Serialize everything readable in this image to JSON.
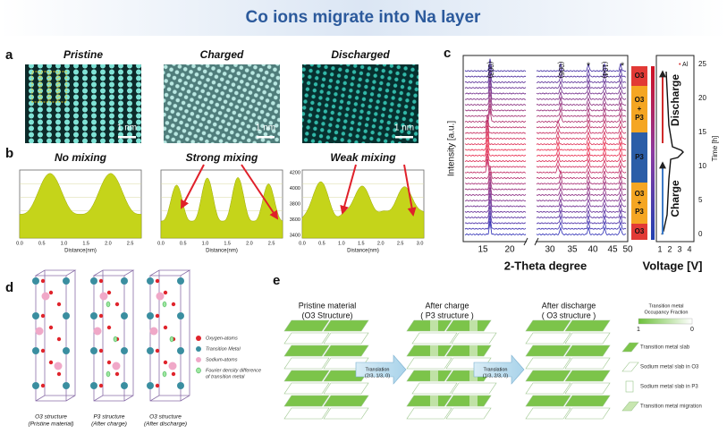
{
  "title": "Co ions migrate into Na layer",
  "panel_a": {
    "letter": "a",
    "images": [
      {
        "label": "Pristine",
        "scale": "1 nm"
      },
      {
        "label": "Charged",
        "scale": "1 nm"
      },
      {
        "label": "Discharged",
        "scale": "1 nm"
      }
    ]
  },
  "panel_b": {
    "letter": "b",
    "plots": [
      {
        "label": "No mixing",
        "xlabel": "Distance(nm)",
        "xticks": [
          "0.0",
          "0.5",
          "1.0",
          "1.5",
          "2.0",
          "2.5"
        ]
      },
      {
        "label": "Strong mixing",
        "xlabel": "Distance(nm)",
        "xticks": [
          "0.0",
          "0.5",
          "1.0",
          "1.5",
          "2.0",
          "2.5"
        ]
      },
      {
        "label": "Weak mixing",
        "xlabel": "Distance(nm)",
        "xticks": [
          "0.0",
          "0.5",
          "1.0",
          "1.5",
          "2.0",
          "2.5",
          "3.0"
        ],
        "yticks": [
          "4200",
          "4000",
          "3800",
          "3600",
          "3400"
        ]
      }
    ]
  },
  "panel_c": {
    "letter": "c",
    "ylabel": "Intensity [a.u.]",
    "xlabel": "2-Theta degree",
    "xticks": [
      "15",
      "20",
      "30",
      "35",
      "40",
      "45",
      "50"
    ],
    "peaks": [
      "(003)",
      "(006)",
      "(104)"
    ],
    "stars": [
      "*",
      "*"
    ],
    "phases": [
      [
        "O3"
      ],
      [
        "O3",
        "+",
        "P3"
      ],
      [
        "P3"
      ],
      [
        "O3",
        "+",
        "P3"
      ],
      [
        "O3"
      ]
    ],
    "voltage_label": "Voltage [V]",
    "voltage_ticks": [
      "1",
      "2",
      "3",
      "4"
    ],
    "al": "Al",
    "charge": "Charge",
    "discharge": "Discharge",
    "time_label": "Time [h]",
    "time_ticks": [
      "0",
      "5",
      "10",
      "15",
      "20",
      "25"
    ]
  },
  "panel_d": {
    "letter": "d",
    "legend": [
      [
        "Oxygen-atoms"
      ],
      [
        "Transition Metal"
      ],
      [
        "Sodium-atoms"
      ],
      [
        "Fourier density difference",
        "of transition metal"
      ]
    ],
    "captions": [
      [
        "O3 structure",
        "(Pristine material)"
      ],
      [
        "P3 structure",
        "(After  charge)"
      ],
      [
        "O3 structure",
        "(After discharge)"
      ]
    ]
  },
  "panel_e": {
    "letter": "e",
    "headers": [
      [
        "Pristine material",
        "(O3 Structure)"
      ],
      [
        "After charge",
        "( P3 structure )"
      ],
      [
        "After discharge",
        "( O3 structure )"
      ]
    ],
    "translations": [
      [
        "Translation",
        "(2/3, 1/3, 0)"
      ],
      [
        "Translation",
        "(1/3, 2/3, 0)"
      ]
    ],
    "legend_title": [
      "Transition metal",
      "Occupancy Fraction"
    ],
    "scale": [
      "1",
      "0"
    ],
    "legend": [
      "Transition metal slab",
      "Sodium metal slab in O3",
      "Sodium metal slab in P3",
      "Transition metal migration"
    ]
  }
}
